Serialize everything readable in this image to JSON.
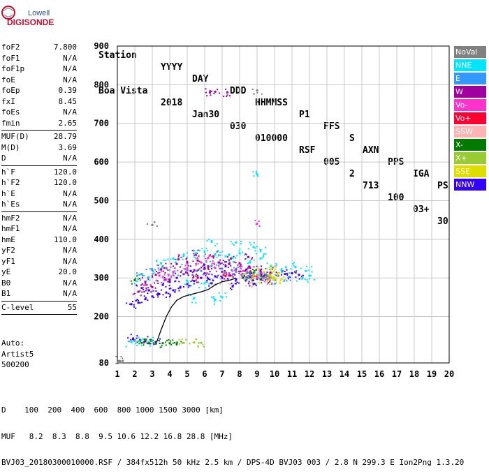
{
  "logo": {
    "line1": "Lowell",
    "line2": "DIGISONDE"
  },
  "header": {
    "cols": [
      "Station",
      "YYYY",
      "DAY",
      "DDD",
      "HHMMSS",
      "P1",
      "FFS",
      "S",
      "AXN",
      "PPS",
      "IGA",
      "PS"
    ],
    "vals": [
      "Boa Vista",
      "2018",
      "Jan30",
      "030",
      "010000",
      "RSF",
      "005",
      "2",
      "713",
      "100",
      "03+",
      "30"
    ]
  },
  "params": {
    "group1": [
      {
        "name": "foF2",
        "value": "7.800"
      },
      {
        "name": "foF1",
        "value": "N/A"
      },
      {
        "name": "foF1p",
        "value": "N/A"
      },
      {
        "name": "foE",
        "value": "N/A"
      },
      {
        "name": "foEp",
        "value": "0.39"
      },
      {
        "name": "fxI",
        "value": "8.45"
      },
      {
        "name": "foEs",
        "value": "N/A"
      },
      {
        "name": "fmin",
        "value": "2.65"
      }
    ],
    "group2": [
      {
        "name": "MUF(D)",
        "value": "28.79"
      },
      {
        "name": "M(D)",
        "value": "3.69"
      },
      {
        "name": "D",
        "value": "N/A"
      }
    ],
    "group3": [
      {
        "name": "h`F",
        "value": "120.0"
      },
      {
        "name": "h`F2",
        "value": "120.0"
      },
      {
        "name": "h`E",
        "value": "N/A"
      },
      {
        "name": "h`Es",
        "value": "N/A"
      }
    ],
    "group4": [
      {
        "name": "hmF2",
        "value": "N/A"
      },
      {
        "name": "hmF1",
        "value": "N/A"
      },
      {
        "name": "hmE",
        "value": "110.0"
      },
      {
        "name": "yF2",
        "value": "N/A"
      },
      {
        "name": "yF1",
        "value": "N/A"
      },
      {
        "name": "yE",
        "value": "20.0"
      },
      {
        "name": "B0",
        "value": "N/A"
      },
      {
        "name": "B1",
        "value": "N/A"
      }
    ],
    "group5": [
      {
        "name": "C-level",
        "value": "55"
      }
    ],
    "auto": [
      "Auto:",
      "Artist5",
      "500200"
    ]
  },
  "legend": [
    {
      "label": "NoVal",
      "color": "#808080"
    },
    {
      "label": "NNE",
      "color": "#00e5ff"
    },
    {
      "label": "E",
      "color": "#3399ff"
    },
    {
      "label": "W",
      "color": "#a000a0"
    },
    {
      "label": "Vo-",
      "color": "#ff33cc"
    },
    {
      "label": "Vo+",
      "color": "#ff0033"
    },
    {
      "label": "SSW",
      "color": "#ffb3b3"
    },
    {
      "label": "X-",
      "color": "#007a00"
    },
    {
      "label": "X+",
      "color": "#99cc33"
    },
    {
      "label": "SSE",
      "color": "#dddd00"
    },
    {
      "label": "NNW",
      "color": "#3300ff"
    }
  ],
  "footer": {
    "line1": "D    100  200  400  600  800 1000 1500 3000 [km]",
    "line2": "MUF   8.2  8.3  8.8  9.5 10.6 12.2 16.8 28.8 [MHz]",
    "line3": "BVJ03_20180300010000.RSF / 384fx512h 50 kHz 2.5 km / DPS-4D BVJ03 003 / 2.8 N 299.3 E Ion2Png 1.3.20"
  },
  "chart_data": {
    "type": "scatter",
    "title": "",
    "xlabel": "",
    "ylabel": "",
    "xlim": [
      1,
      20
    ],
    "ylim": [
      80,
      900
    ],
    "x_ticks": [
      1,
      2,
      3,
      4,
      5,
      6,
      7,
      8,
      9,
      10,
      11,
      12,
      13,
      14,
      15,
      16,
      17,
      18,
      19,
      20
    ],
    "y_ticks": [
      80,
      200,
      300,
      400,
      500,
      600,
      700,
      800,
      900
    ],
    "grid": true,
    "legend_position": "right",
    "series": [
      {
        "name": "NNW",
        "color": "#3300ff",
        "points": [
          [
            1.8,
            232
          ],
          [
            2.2,
            236
          ],
          [
            2.6,
            245
          ],
          [
            3.0,
            252
          ],
          [
            3.4,
            258
          ],
          [
            3.8,
            262
          ],
          [
            4.2,
            268
          ],
          [
            4.6,
            275
          ],
          [
            5.0,
            284
          ],
          [
            5.4,
            292
          ],
          [
            5.8,
            300
          ],
          [
            6.2,
            298
          ],
          [
            6.6,
            304
          ],
          [
            7.0,
            300
          ],
          [
            7.4,
            306
          ],
          [
            7.8,
            296
          ],
          [
            8.2,
            300
          ],
          [
            8.6,
            302
          ],
          [
            9.0,
            298
          ],
          [
            9.4,
            305
          ],
          [
            9.8,
            300
          ],
          [
            10.2,
            306
          ],
          [
            10.6,
            310
          ],
          [
            11.0,
            312
          ],
          [
            11.4,
            308
          ],
          [
            2.8,
            268
          ],
          [
            3.6,
            282
          ],
          [
            4.4,
            300
          ],
          [
            5.2,
            318
          ],
          [
            6.0,
            326
          ],
          [
            7.2,
            330
          ],
          [
            8.4,
            322
          ],
          [
            9.2,
            318
          ],
          [
            2.4,
            274
          ],
          [
            4.0,
            290
          ],
          [
            6.4,
            286
          ],
          [
            7.6,
            278
          ],
          [
            8.8,
            284
          ],
          [
            2.0,
            138
          ],
          [
            2.6,
            136
          ],
          [
            3.2,
            134
          ],
          [
            1.9,
            142
          ]
        ]
      },
      {
        "name": "W",
        "color": "#a000a0",
        "points": [
          [
            2.6,
            290
          ],
          [
            3.2,
            308
          ],
          [
            3.8,
            325
          ],
          [
            4.4,
            336
          ],
          [
            5.0,
            340
          ],
          [
            5.6,
            345
          ],
          [
            6.2,
            330
          ],
          [
            6.8,
            340
          ],
          [
            7.4,
            336
          ],
          [
            8.0,
            338
          ],
          [
            8.6,
            326
          ],
          [
            9.2,
            320
          ],
          [
            9.8,
            314
          ],
          [
            2.2,
            264
          ],
          [
            3.0,
            276
          ],
          [
            4.0,
            296
          ],
          [
            4.8,
            310
          ],
          [
            5.4,
            320
          ],
          [
            6.0,
            312
          ],
          [
            7.0,
            316
          ],
          [
            7.8,
            322
          ],
          [
            8.4,
            312
          ],
          [
            9.0,
            306
          ],
          [
            9.6,
            298
          ],
          [
            3.5,
            322
          ],
          [
            4.5,
            348
          ],
          [
            5.5,
            360
          ],
          [
            6.5,
            356
          ],
          [
            7.5,
            350
          ],
          [
            8.5,
            354
          ],
          [
            6.3,
            780
          ],
          [
            6.6,
            782
          ],
          [
            7.3,
            780
          ]
        ]
      },
      {
        "name": "NNE",
        "color": "#00e5ff",
        "points": [
          [
            2.2,
            297
          ],
          [
            2.8,
            302
          ],
          [
            3.5,
            338
          ],
          [
            4.2,
            350
          ],
          [
            4.8,
            358
          ],
          [
            5.5,
            364
          ],
          [
            6.0,
            368
          ],
          [
            6.6,
            360
          ],
          [
            7.2,
            356
          ],
          [
            7.6,
            352
          ],
          [
            8.0,
            364
          ],
          [
            8.6,
            340
          ],
          [
            9.2,
            350
          ],
          [
            9.8,
            330
          ],
          [
            10.4,
            320
          ],
          [
            11.2,
            328
          ],
          [
            11.8,
            318
          ],
          [
            12.0,
            306
          ],
          [
            11.6,
            300
          ],
          [
            1.8,
            135
          ],
          [
            2.2,
            136
          ],
          [
            2.8,
            134
          ],
          [
            5.4,
            248
          ],
          [
            6.6,
            244
          ],
          [
            7.0,
            250
          ],
          [
            6.4,
            395
          ],
          [
            7.8,
            392
          ],
          [
            8.8,
            380
          ],
          [
            9.0,
            568
          ],
          [
            9.2,
            372
          ],
          [
            5.0,
            292
          ],
          [
            6.0,
            286
          ]
        ]
      },
      {
        "name": "E",
        "color": "#3399ff",
        "points": [
          [
            2.4,
            310
          ],
          [
            3.0,
            320
          ],
          [
            3.6,
            330
          ],
          [
            4.2,
            314
          ],
          [
            5.0,
            322
          ],
          [
            5.8,
            318
          ],
          [
            6.4,
            332
          ],
          [
            7.0,
            324
          ],
          [
            7.8,
            316
          ],
          [
            8.6,
            308
          ],
          [
            9.4,
            300
          ],
          [
            10.0,
            296
          ],
          [
            10.8,
            302
          ]
        ]
      },
      {
        "name": "Vo-",
        "color": "#ff33cc",
        "points": [
          [
            3.4,
            306
          ],
          [
            4.2,
            316
          ],
          [
            5.0,
            324
          ],
          [
            5.8,
            340
          ],
          [
            6.6,
            326
          ],
          [
            7.4,
            312
          ],
          [
            8.2,
            318
          ],
          [
            9.0,
            300
          ],
          [
            9.6,
            292
          ],
          [
            2.6,
            282
          ],
          [
            3.8,
            296
          ],
          [
            6.2,
            352
          ],
          [
            9.0,
            440
          ]
        ]
      },
      {
        "name": "Vo+",
        "color": "#ff0033",
        "points": [
          [
            5.6,
            300
          ],
          [
            7.2,
            305
          ],
          [
            8.8,
            310
          ]
        ]
      },
      {
        "name": "SSW",
        "color": "#ffb3b3",
        "points": [
          [
            7.2,
            294
          ],
          [
            8.6,
            286
          ]
        ]
      },
      {
        "name": "X-",
        "color": "#007a00",
        "points": [
          [
            2.0,
            294
          ],
          [
            2.4,
            132
          ],
          [
            2.8,
            131
          ],
          [
            3.2,
            130
          ],
          [
            3.6,
            131
          ],
          [
            4.0,
            131
          ],
          [
            4.4,
            130
          ],
          [
            8.4,
            300
          ],
          [
            9.2,
            296
          ],
          [
            8.8,
            312
          ]
        ]
      },
      {
        "name": "X+",
        "color": "#99cc33",
        "points": [
          [
            8.2,
            306
          ],
          [
            9.0,
            308
          ],
          [
            9.8,
            300
          ],
          [
            4.8,
            132
          ],
          [
            5.4,
            133
          ],
          [
            5.8,
            132
          ]
        ]
      },
      {
        "name": "SSE",
        "color": "#dddd00",
        "points": [
          [
            9.4,
            316
          ],
          [
            9.8,
            322
          ],
          [
            10.2,
            312
          ],
          [
            10.0,
            300
          ],
          [
            9.6,
            292
          ],
          [
            10.4,
            296
          ],
          [
            9.8,
            306
          ],
          [
            8.8,
            300
          ]
        ]
      },
      {
        "name": "NoVal",
        "color": "#808080",
        "points": [
          [
            1.1,
            85
          ],
          [
            1.3,
            85
          ],
          [
            3.0,
            437
          ],
          [
            9.0,
            785
          ]
        ]
      }
    ],
    "trace_line": {
      "color": "#000000",
      "points": [
        [
          3.25,
          134
        ],
        [
          3.5,
          165
        ],
        [
          3.8,
          200
        ],
        [
          4.1,
          225
        ],
        [
          4.4,
          242
        ],
        [
          4.8,
          252
        ],
        [
          5.3,
          258
        ],
        [
          5.8,
          264
        ],
        [
          6.2,
          270
        ],
        [
          6.6,
          282
        ],
        [
          7.0,
          290
        ],
        [
          7.5,
          295
        ],
        [
          7.8,
          300
        ]
      ]
    }
  }
}
